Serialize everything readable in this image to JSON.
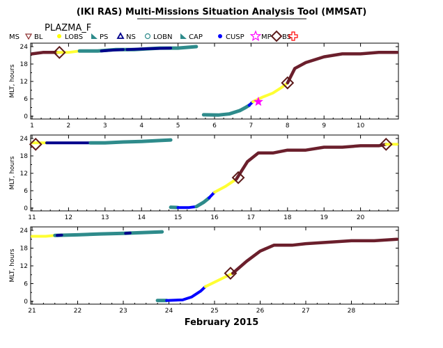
{
  "title": "(IKI RAS) Multi-Missions Situation Analysis Tool (MMSAT)",
  "subtitle": "PLAZMA_F",
  "legend": [
    {
      "label": "MS",
      "color": "#000000",
      "symbol": "none"
    },
    {
      "label": "BL",
      "color": "#8b2d2d",
      "symbol": "triangle-down"
    },
    {
      "label": "LOBS",
      "color": "#ffff00",
      "symbol": "dot"
    },
    {
      "label": "PS",
      "color": "#2e8b8b",
      "symbol": "flag"
    },
    {
      "label": "NS",
      "color": "#00008b",
      "symbol": "triangle-up"
    },
    {
      "label": "LOBN",
      "color": "#2e8b8b",
      "symbol": "circle"
    },
    {
      "label": "CAP",
      "color": "#2e8b8b",
      "symbol": "flag"
    },
    {
      "label": "CUSP",
      "color": "#0000ff",
      "symbol": "dot"
    },
    {
      "label": "MP",
      "color": "#ff00ff",
      "symbol": "star"
    },
    {
      "label": "BS",
      "color": "#5c1a1a",
      "symbol": "diamond"
    },
    {
      "label": "",
      "color": "#ff0000",
      "symbol": "cross"
    }
  ],
  "colors": {
    "MS": "#6b1f2c",
    "LOBS": "#ffff33",
    "PS": "#2e8b8b",
    "NS": "#00008b",
    "CUSP": "#0000ff",
    "MP": "#ff00ff",
    "BS": "#5c1a1a"
  },
  "chart_data": [
    {
      "type": "line",
      "ylabel": "MLT, hours",
      "xlim": [
        1,
        11
      ],
      "ylim": [
        0,
        24
      ],
      "xticks": [
        1,
        2,
        3,
        4,
        5,
        6,
        7,
        8,
        9,
        10
      ],
      "xticklabels": [
        "1",
        "2",
        "3",
        "4",
        "5",
        "6",
        "7",
        "8",
        "9",
        "10"
      ],
      "yticks": [
        0,
        6,
        12,
        18,
        24
      ],
      "yticklabels": [
        "0",
        "6",
        "12",
        "18",
        "24"
      ],
      "segments": [
        {
          "region": "MS",
          "x": [
            1.0,
            1.3,
            1.7
          ],
          "y": [
            21.5,
            22.0,
            22.0
          ]
        },
        {
          "region": "LOBS",
          "x": [
            1.7,
            2.0,
            2.3
          ],
          "y": [
            22.0,
            22.0,
            22.5
          ]
        },
        {
          "region": "PS",
          "x": [
            2.3,
            2.8,
            3.3,
            3.8,
            4.5,
            5.0,
            5.5
          ],
          "y": [
            22.5,
            22.5,
            23.0,
            23.0,
            23.5,
            23.5,
            24.0
          ]
        },
        {
          "region": "NS",
          "x": [
            2.9,
            3.2,
            3.5
          ],
          "y": [
            22.5,
            22.8,
            23.0
          ]
        },
        {
          "region": "NS",
          "x": [
            3.6,
            4.2,
            4.8
          ],
          "y": [
            23.0,
            23.3,
            23.5
          ]
        },
        {
          "region": "PS",
          "x": [
            5.7,
            6.1,
            6.4,
            6.7
          ],
          "y": [
            0.5,
            0.4,
            0.8,
            2.0
          ]
        },
        {
          "region": "PS",
          "x": [
            6.7,
            6.85,
            6.95
          ],
          "y": [
            2.0,
            3.0,
            3.8
          ]
        },
        {
          "region": "CUSP",
          "x": [
            6.95,
            7.05
          ],
          "y": [
            3.8,
            5.0
          ]
        },
        {
          "region": "LOBS",
          "x": [
            7.05,
            7.3,
            7.6,
            7.85,
            8.0
          ],
          "y": [
            5.0,
            6.5,
            8.0,
            10.0,
            11.5
          ]
        },
        {
          "region": "MS",
          "x": [
            8.0,
            8.2,
            8.5,
            9.0,
            9.5,
            10.0,
            10.5,
            11.0
          ],
          "y": [
            11.5,
            16.5,
            18.5,
            20.5,
            21.5,
            21.5,
            22.0,
            22.0
          ]
        }
      ],
      "markers": [
        {
          "type": "BS",
          "x": 1.75,
          "y": 22.0
        },
        {
          "type": "MP",
          "x": 7.2,
          "y": 5.0
        },
        {
          "type": "BS",
          "x": 8.0,
          "y": 11.5
        }
      ]
    },
    {
      "type": "line",
      "ylabel": "MLT, hours",
      "xlim": [
        11,
        21
      ],
      "ylim": [
        0,
        24
      ],
      "xticks": [
        11,
        12,
        13,
        14,
        15,
        16,
        17,
        18,
        19,
        20
      ],
      "xticklabels": [
        "11",
        "12",
        "13",
        "14",
        "15",
        "16",
        "17",
        "18",
        "19",
        "20"
      ],
      "yticks": [
        0,
        6,
        12,
        18,
        24
      ],
      "yticklabels": [
        "0",
        "6",
        "12",
        "18",
        "24"
      ],
      "segments": [
        {
          "region": "LOBS",
          "x": [
            11.0,
            11.3,
            11.4
          ],
          "y": [
            22.5,
            22.5,
            22.5
          ]
        },
        {
          "region": "NS",
          "x": [
            11.4,
            12.0,
            12.6
          ],
          "y": [
            22.5,
            22.5,
            22.5
          ]
        },
        {
          "region": "PS",
          "x": [
            12.6,
            13.0,
            13.5,
            14.0,
            14.5,
            14.8
          ],
          "y": [
            22.5,
            22.5,
            22.8,
            23.0,
            23.3,
            23.5
          ]
        },
        {
          "region": "PS",
          "x": [
            14.8,
            15.0
          ],
          "y": [
            0.3,
            0.2
          ]
        },
        {
          "region": "CUSP",
          "x": [
            15.0,
            15.3,
            15.5
          ],
          "y": [
            0.2,
            0.2,
            0.5
          ]
        },
        {
          "region": "PS",
          "x": [
            15.5,
            15.7,
            15.85
          ],
          "y": [
            0.5,
            2.0,
            3.5
          ]
        },
        {
          "region": "CUSP",
          "x": [
            15.85,
            16.0
          ],
          "y": [
            3.5,
            5.5
          ]
        },
        {
          "region": "LOBS",
          "x": [
            16.0,
            16.3,
            16.6
          ],
          "y": [
            5.5,
            7.5,
            10.0
          ]
        },
        {
          "region": "MS",
          "x": [
            16.6,
            16.9,
            17.2,
            17.6,
            18.0,
            18.5,
            19.0,
            19.5,
            20.0,
            20.5,
            20.7
          ],
          "y": [
            10.0,
            16.0,
            19.0,
            19.0,
            20.0,
            20.0,
            21.0,
            21.0,
            21.5,
            21.5,
            22.0
          ]
        },
        {
          "region": "LOBS",
          "x": [
            20.7,
            21.0
          ],
          "y": [
            22.0,
            22.0
          ]
        }
      ],
      "markers": [
        {
          "type": "BS",
          "x": 11.1,
          "y": 22.0
        },
        {
          "type": "BS",
          "x": 16.65,
          "y": 10.5
        },
        {
          "type": "BS",
          "x": 20.7,
          "y": 22.0
        }
      ]
    },
    {
      "type": "line",
      "ylabel": "MLT, hours",
      "xlim": [
        21,
        29
      ],
      "ylim": [
        0,
        24
      ],
      "xticks": [
        21,
        22,
        23,
        24,
        25,
        26,
        27,
        28
      ],
      "xticklabels": [
        "21",
        "22",
        "23",
        "24",
        "25",
        "26",
        "27",
        "28"
      ],
      "yticks": [
        0,
        6,
        12,
        18,
        24
      ],
      "yticklabels": [
        "0",
        "6",
        "12",
        "18",
        "24"
      ],
      "xlabel": "February 2015",
      "segments": [
        {
          "region": "LOBS",
          "x": [
            21.0,
            21.3,
            21.5
          ],
          "y": [
            22.0,
            22.0,
            22.3
          ]
        },
        {
          "region": "PS",
          "x": [
            21.5,
            22.0,
            22.5,
            23.0,
            23.5,
            23.85
          ],
          "y": [
            22.3,
            22.5,
            22.8,
            23.0,
            23.3,
            23.5
          ]
        },
        {
          "region": "NS",
          "x": [
            21.55,
            21.65
          ],
          "y": [
            22.3,
            22.4
          ]
        },
        {
          "region": "NS",
          "x": [
            23.05,
            23.15
          ],
          "y": [
            23.0,
            23.1
          ]
        },
        {
          "region": "PS",
          "x": [
            23.75,
            23.95
          ],
          "y": [
            0.3,
            0.3
          ]
        },
        {
          "region": "CUSP",
          "x": [
            23.95,
            24.3,
            24.5,
            24.7,
            24.8
          ],
          "y": [
            0.3,
            0.5,
            1.5,
            3.5,
            5.0
          ]
        },
        {
          "region": "LOBS",
          "x": [
            24.8,
            25.0,
            25.2,
            25.4
          ],
          "y": [
            5.0,
            6.5,
            8.0,
            9.5
          ]
        },
        {
          "region": "MS",
          "x": [
            25.4,
            25.7,
            26.0,
            26.3,
            26.7,
            27.0,
            27.5,
            28.0,
            28.5,
            29.0
          ],
          "y": [
            9.5,
            13.5,
            17.0,
            19.0,
            19.0,
            19.5,
            20.0,
            20.5,
            20.5,
            21.0
          ]
        }
      ],
      "markers": [
        {
          "type": "BS",
          "x": 25.35,
          "y": 9.5
        }
      ]
    }
  ]
}
